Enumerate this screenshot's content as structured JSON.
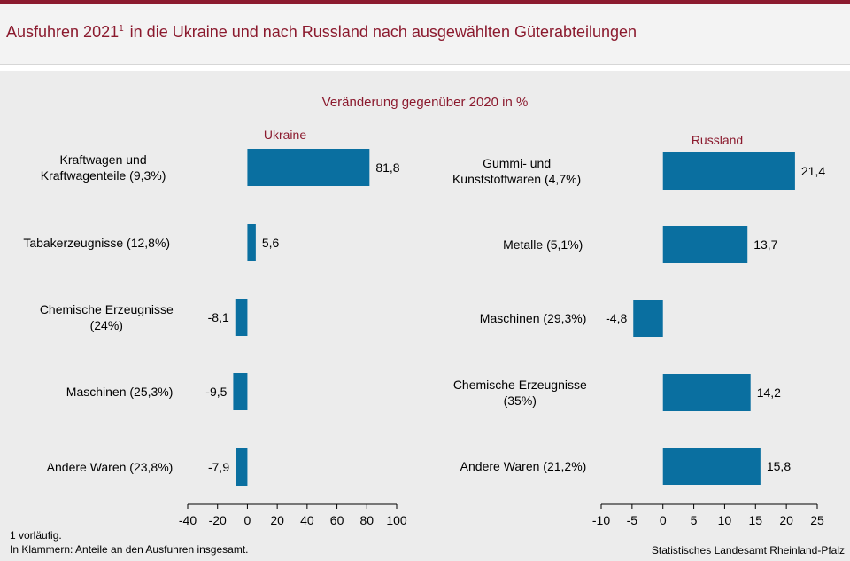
{
  "title": "Ausfuhren 2021",
  "title_sup": "1",
  "title_rest": " in die Ukraine und nach Russland nach ausgewählten Güterabteilungen",
  "subtitle": "Veränderung gegenüber 2020 in %",
  "colors": {
    "bar": "#0a6fa0",
    "accent": "#8b1a2e"
  },
  "chart_data": [
    {
      "type": "bar",
      "orientation": "horizontal",
      "title": "Ukraine",
      "categories": [
        [
          "Kraftwagen und",
          "Kraftwagenteile (9,3%)"
        ],
        [
          "Tabakerzeugnisse (12,8%)"
        ],
        [
          "Chemische Erzeugnisse",
          "(24%)"
        ],
        [
          "Maschinen (25,3%)"
        ],
        [
          "Andere Waren (23,8%)"
        ]
      ],
      "values": [
        81.8,
        5.6,
        -8.1,
        -9.5,
        -7.9
      ],
      "value_labels": [
        "81,8",
        "5,6",
        "-8,1",
        "-9,5",
        "-7,9"
      ],
      "xlim": [
        -40,
        100
      ],
      "xticks": [
        -40,
        -20,
        0,
        20,
        40,
        60,
        80,
        100
      ],
      "xtick_labels": [
        "-40",
        "-20",
        "0",
        "20",
        "40",
        "60",
        "80",
        "100"
      ]
    },
    {
      "type": "bar",
      "orientation": "horizontal",
      "title": "Russland",
      "categories": [
        [
          "Gummi- und",
          "Kunststoffwaren (4,7%)"
        ],
        [
          "Metalle (5,1%)"
        ],
        [
          "Maschinen (29,3%)"
        ],
        [
          "Chemische Erzeugnisse",
          "(35%)"
        ],
        [
          "Andere Waren (21,2%)"
        ]
      ],
      "values": [
        21.4,
        13.7,
        -4.8,
        14.2,
        15.8
      ],
      "value_labels": [
        "21,4",
        "13,7",
        "-4,8",
        "14,2",
        "15,8"
      ],
      "xlim": [
        -10,
        25
      ],
      "xticks": [
        -10,
        -5,
        0,
        5,
        10,
        15,
        20,
        25
      ],
      "xtick_labels": [
        "-10",
        "-5",
        "0",
        "5",
        "10",
        "15",
        "20",
        "25"
      ]
    }
  ],
  "footnotes": [
    "1 vorläufig.",
    "In Klammern: Anteile an den Ausfuhren insgesamt."
  ],
  "source": "Statistisches Landesamt Rheinland-Pfalz"
}
